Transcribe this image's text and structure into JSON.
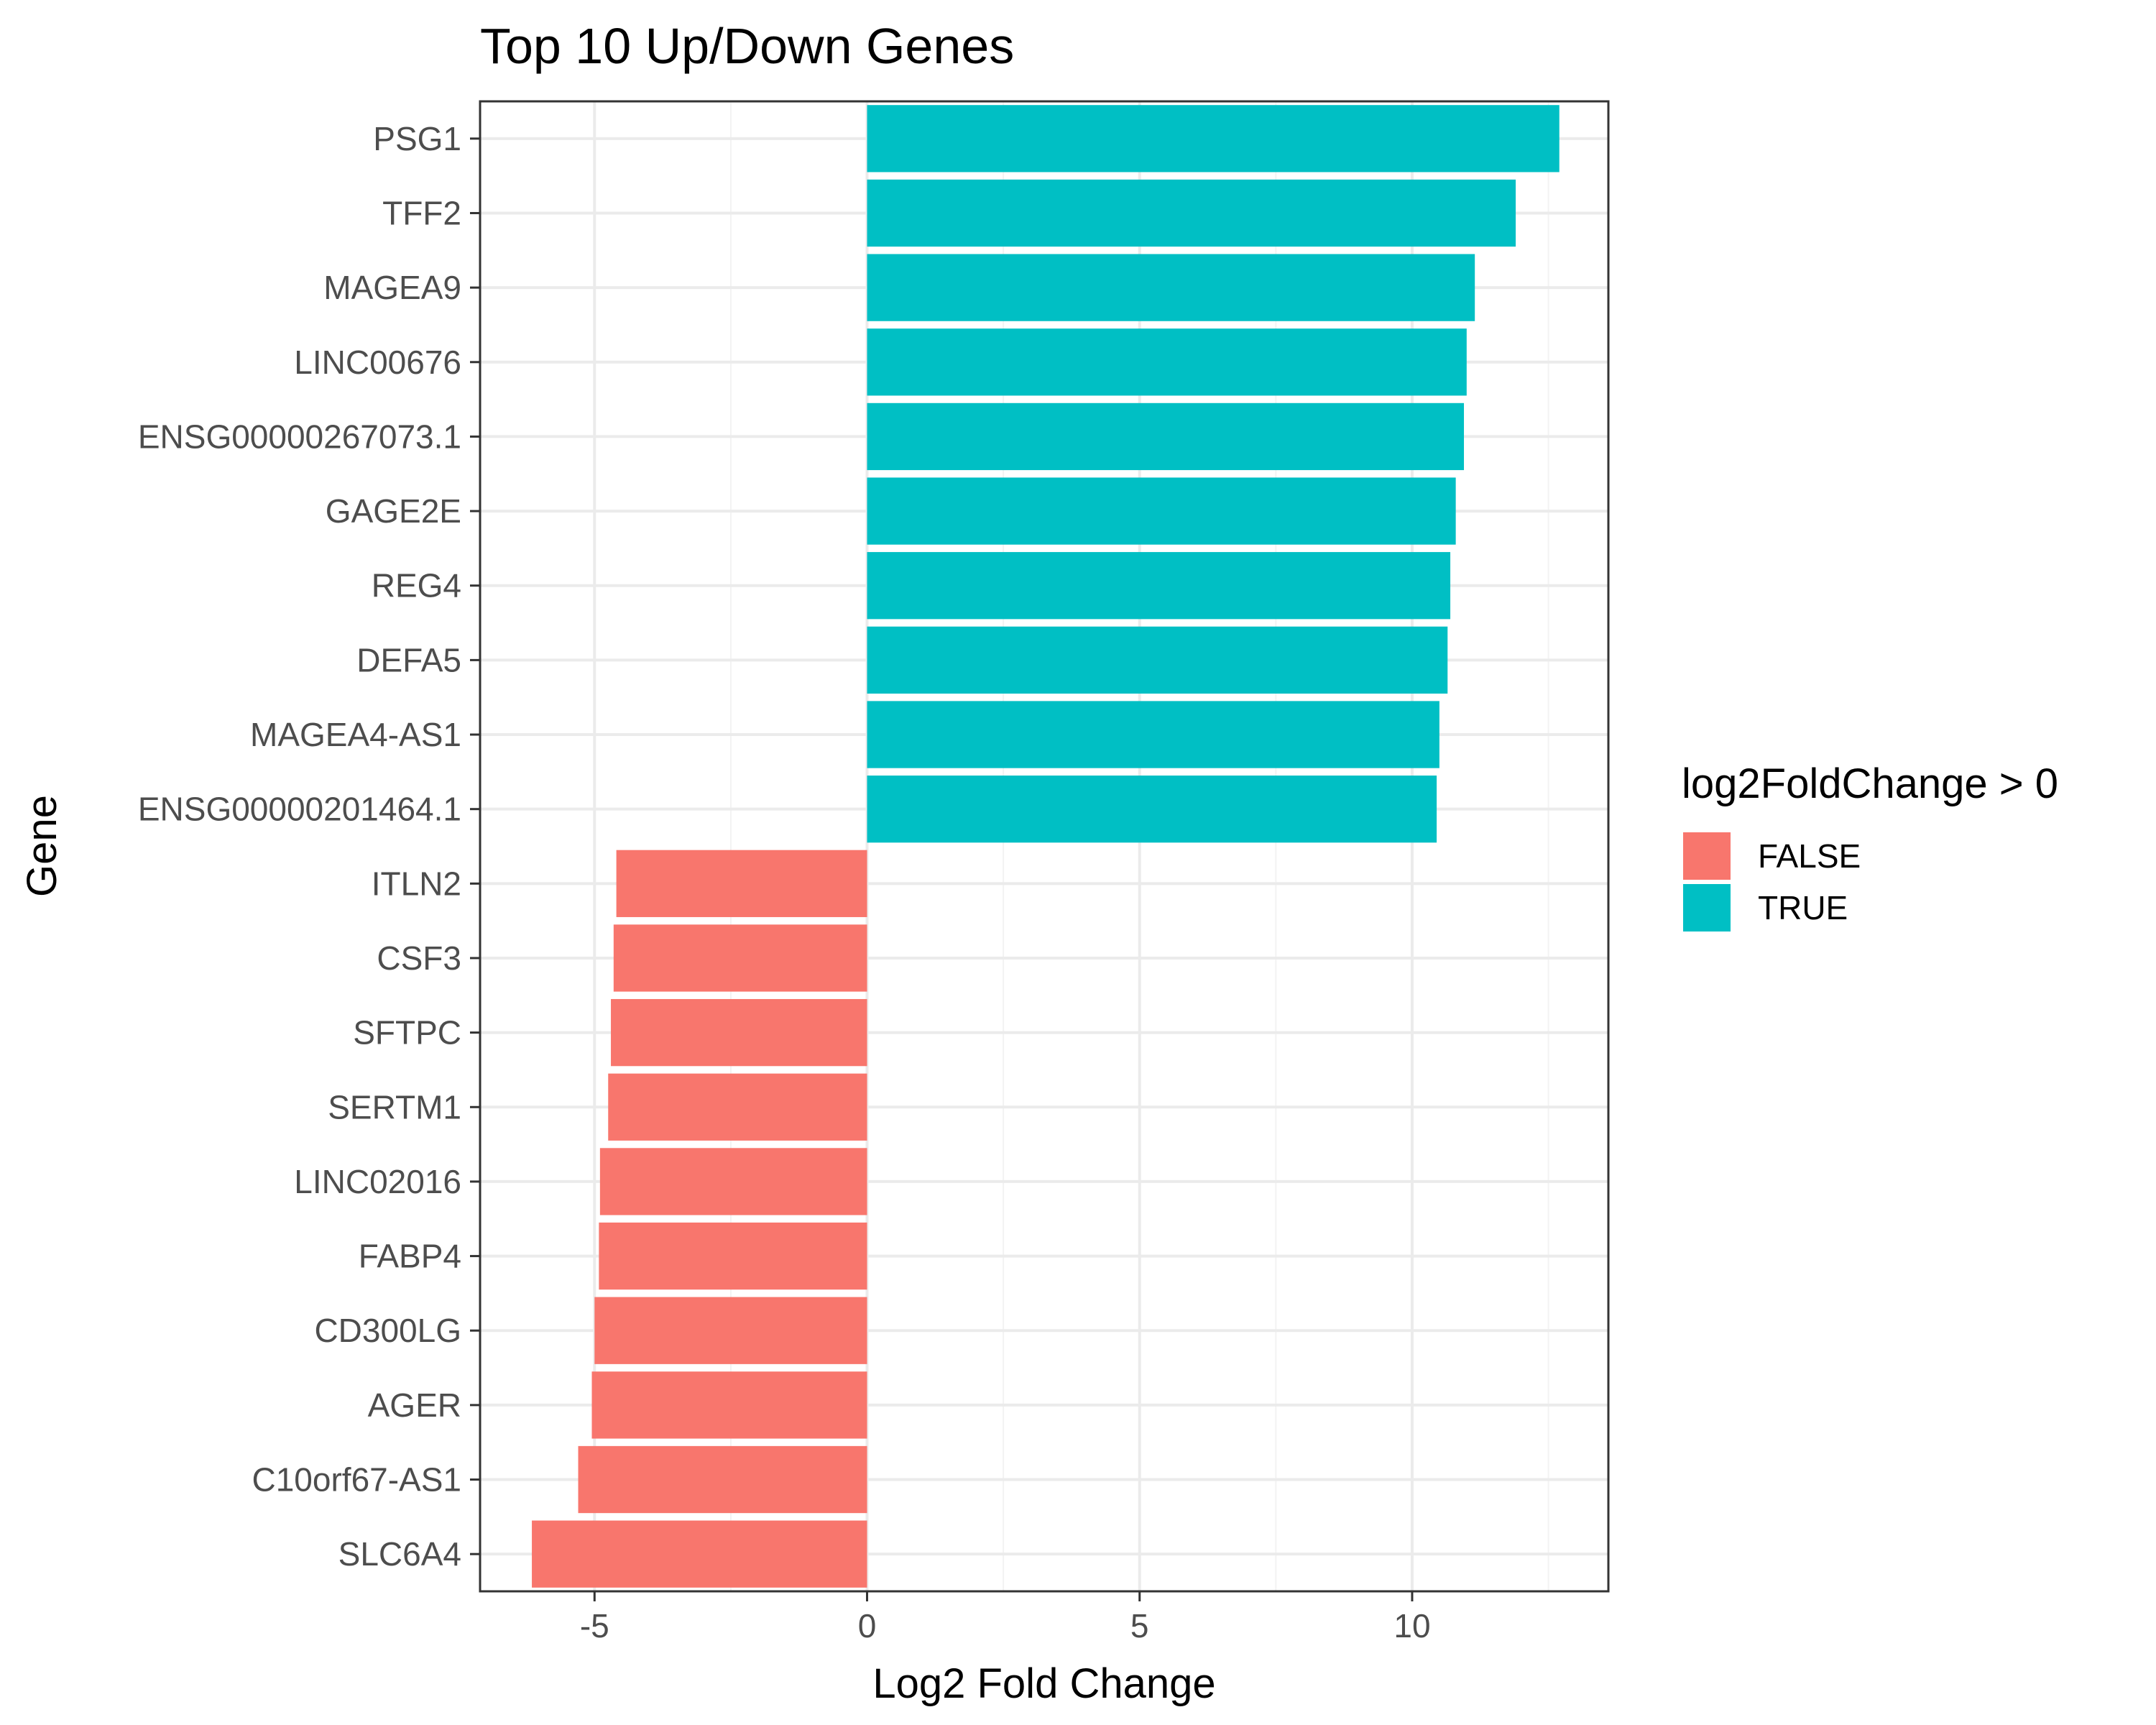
{
  "chart_data": {
    "type": "bar",
    "orientation": "horizontal",
    "title": "Top 10 Up/Down Genes",
    "xlabel": "Log2 Fold Change",
    "ylabel": "Gene",
    "xlim": [
      -7.1,
      13.6
    ],
    "x_ticks": [
      -5,
      0,
      5,
      10
    ],
    "x_tick_labels": [
      "-5",
      "0",
      "5",
      "10"
    ],
    "grid": true,
    "categories": [
      "PSG1",
      "TFF2",
      "MAGEA9",
      "LINC00676",
      "ENSG00000267073.1",
      "GAGE2E",
      "REG4",
      "DEFA5",
      "MAGEA4-AS1",
      "ENSG00000201464.1",
      "ITLN2",
      "CSF3",
      "SFTPC",
      "SERTM1",
      "LINC02016",
      "FABP4",
      "CD300LG",
      "AGER",
      "C10orf67-AS1",
      "SLC6A4"
    ],
    "values": [
      12.7,
      11.9,
      11.15,
      11.0,
      10.95,
      10.8,
      10.7,
      10.65,
      10.5,
      10.45,
      -4.6,
      -4.65,
      -4.7,
      -4.75,
      -4.9,
      -4.92,
      -5.0,
      -5.05,
      -5.3,
      -6.15
    ],
    "legend": {
      "title": "log2FoldChange > 0",
      "position": "right",
      "entries": [
        {
          "label": "FALSE",
          "color": "#F8766D"
        },
        {
          "label": "TRUE",
          "color": "#00BFC4"
        }
      ]
    }
  }
}
